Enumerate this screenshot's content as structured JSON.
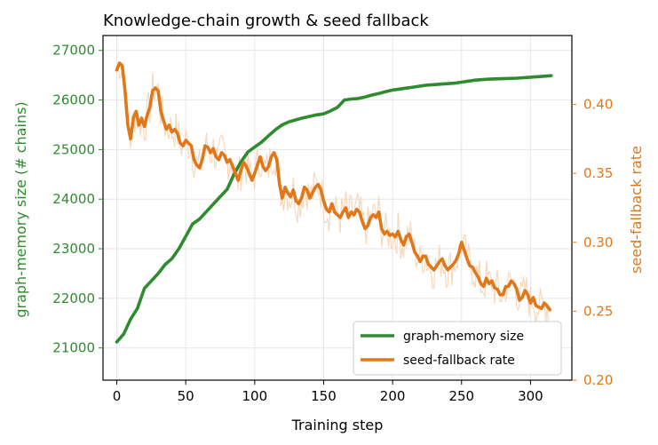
{
  "chart_data": {
    "type": "line",
    "title": "Knowledge-chain growth & seed fallback",
    "xlabel": "Training step",
    "ylabel_left": "graph-memory size (# chains)",
    "ylabel_right": "seed-fallback rate",
    "xlim": [
      -10,
      330
    ],
    "ylim_left": [
      20350,
      27300
    ],
    "ylim_right": [
      0.2,
      0.45
    ],
    "x_ticks": [
      "0",
      "50",
      "100",
      "150",
      "200",
      "250",
      "300"
    ],
    "y_left_ticks": [
      "21000",
      "22000",
      "23000",
      "24000",
      "25000",
      "26000",
      "27000"
    ],
    "y_right_ticks": [
      "0.20",
      "0.25",
      "0.30",
      "0.35",
      "0.40"
    ],
    "grid": true,
    "legend_position": "lower-right",
    "colors": {
      "left_axis": "#2e8b2e",
      "right_axis": "#e0781a",
      "raw_fallback": "#f6d9bd"
    },
    "series": [
      {
        "name": "graph-memory size",
        "axis": "left",
        "x": [
          0,
          5,
          10,
          15,
          20,
          25,
          30,
          35,
          40,
          45,
          50,
          55,
          60,
          65,
          70,
          75,
          80,
          85,
          90,
          95,
          100,
          105,
          110,
          115,
          120,
          125,
          130,
          135,
          140,
          145,
          150,
          155,
          160,
          165,
          170,
          175,
          180,
          185,
          190,
          195,
          200,
          205,
          210,
          215,
          220,
          225,
          230,
          235,
          240,
          245,
          250,
          260,
          270,
          280,
          290,
          300,
          310,
          315
        ],
        "values": [
          21120,
          21280,
          21580,
          21800,
          22200,
          22350,
          22500,
          22680,
          22800,
          23000,
          23250,
          23500,
          23600,
          23750,
          23900,
          24050,
          24200,
          24500,
          24750,
          24950,
          25050,
          25150,
          25280,
          25400,
          25500,
          25560,
          25600,
          25640,
          25670,
          25700,
          25720,
          25780,
          25850,
          26000,
          26020,
          26030,
          26060,
          26100,
          26130,
          26170,
          26200,
          26220,
          26240,
          26260,
          26280,
          26300,
          26310,
          26320,
          26330,
          26340,
          26360,
          26400,
          26420,
          26430,
          26440,
          26460,
          26480,
          26490
        ]
      },
      {
        "name": "seed-fallback rate",
        "axis": "right",
        "x": [
          0,
          2,
          4,
          6,
          8,
          10,
          12,
          14,
          16,
          18,
          20,
          22,
          24,
          26,
          28,
          30,
          32,
          34,
          36,
          38,
          40,
          42,
          44,
          46,
          48,
          50,
          52,
          54,
          56,
          58,
          60,
          62,
          64,
          66,
          68,
          70,
          72,
          74,
          76,
          78,
          80,
          82,
          84,
          86,
          88,
          90,
          92,
          94,
          96,
          98,
          100,
          102,
          104,
          106,
          108,
          110,
          112,
          114,
          116,
          118,
          120,
          122,
          124,
          126,
          128,
          130,
          132,
          134,
          136,
          138,
          140,
          142,
          144,
          146,
          148,
          150,
          152,
          154,
          156,
          158,
          160,
          162,
          164,
          166,
          168,
          170,
          172,
          174,
          176,
          178,
          180,
          182,
          184,
          186,
          188,
          190,
          192,
          194,
          196,
          198,
          200,
          202,
          204,
          206,
          208,
          210,
          212,
          214,
          216,
          218,
          220,
          222,
          224,
          226,
          228,
          230,
          232,
          234,
          236,
          238,
          240,
          242,
          244,
          246,
          248,
          250,
          252,
          254,
          256,
          258,
          260,
          262,
          264,
          266,
          268,
          270,
          272,
          274,
          276,
          278,
          280,
          282,
          284,
          286,
          288,
          290,
          292,
          294,
          296,
          298,
          300,
          302,
          304,
          306,
          308,
          310,
          312,
          314
        ],
        "values": [
          0.425,
          0.43,
          0.428,
          0.41,
          0.385,
          0.375,
          0.39,
          0.395,
          0.385,
          0.39,
          0.384,
          0.392,
          0.398,
          0.41,
          0.412,
          0.41,
          0.395,
          0.388,
          0.382,
          0.385,
          0.38,
          0.382,
          0.379,
          0.372,
          0.37,
          0.374,
          0.372,
          0.37,
          0.36,
          0.356,
          0.354,
          0.36,
          0.37,
          0.369,
          0.365,
          0.368,
          0.362,
          0.36,
          0.365,
          0.363,
          0.358,
          0.36,
          0.355,
          0.35,
          0.345,
          0.352,
          0.358,
          0.355,
          0.35,
          0.345,
          0.35,
          0.356,
          0.362,
          0.355,
          0.352,
          0.355,
          0.362,
          0.365,
          0.36,
          0.342,
          0.332,
          0.34,
          0.336,
          0.333,
          0.338,
          0.33,
          0.328,
          0.332,
          0.34,
          0.338,
          0.332,
          0.336,
          0.34,
          0.342,
          0.338,
          0.33,
          0.324,
          0.322,
          0.328,
          0.322,
          0.32,
          0.318,
          0.322,
          0.325,
          0.318,
          0.322,
          0.32,
          0.324,
          0.322,
          0.315,
          0.31,
          0.312,
          0.318,
          0.32,
          0.318,
          0.322,
          0.31,
          0.306,
          0.308,
          0.305,
          0.306,
          0.304,
          0.308,
          0.302,
          0.298,
          0.304,
          0.306,
          0.3,
          0.293,
          0.29,
          0.286,
          0.29,
          0.29,
          0.284,
          0.282,
          0.28,
          0.283,
          0.286,
          0.288,
          0.283,
          0.28,
          0.282,
          0.284,
          0.287,
          0.292,
          0.3,
          0.294,
          0.288,
          0.283,
          0.282,
          0.278,
          0.275,
          0.27,
          0.268,
          0.274,
          0.27,
          0.272,
          0.267,
          0.266,
          0.262,
          0.262,
          0.268,
          0.268,
          0.272,
          0.27,
          0.266,
          0.258,
          0.26,
          0.265,
          0.262,
          0.256,
          0.26,
          0.254,
          0.253,
          0.252,
          0.256,
          0.254,
          0.251
        ]
      }
    ]
  }
}
